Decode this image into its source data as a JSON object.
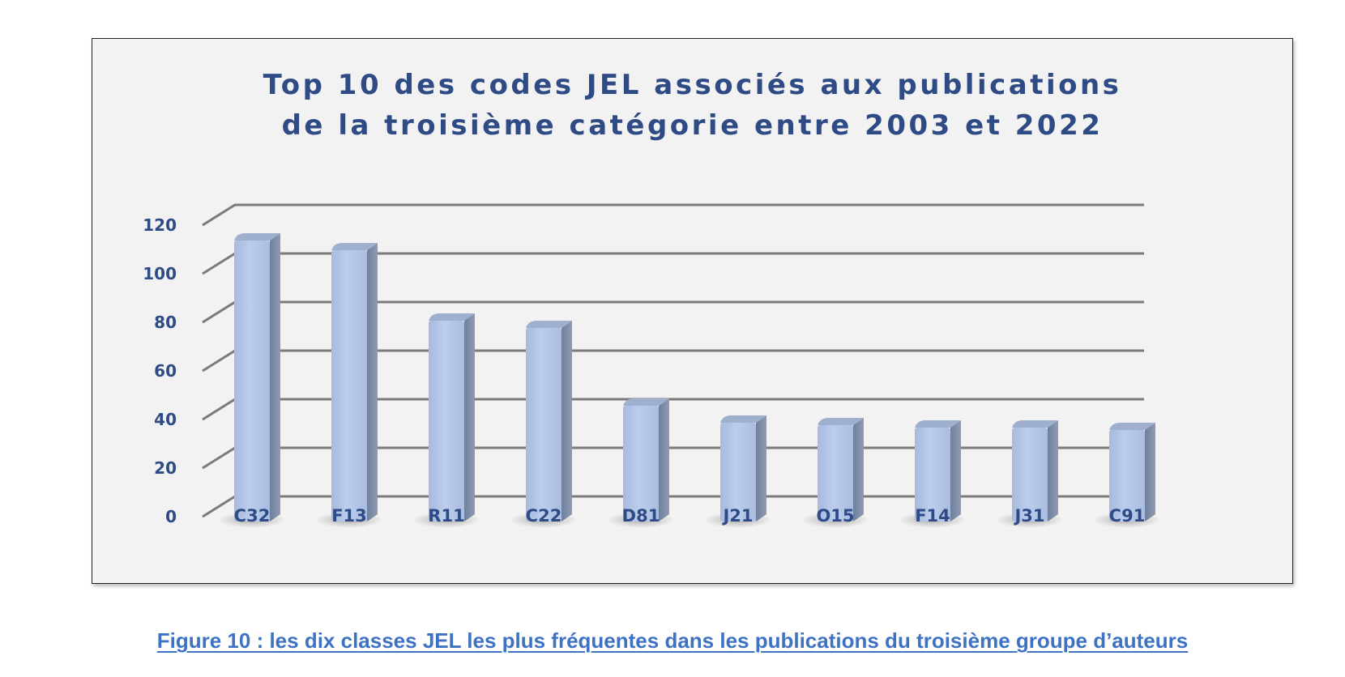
{
  "chart_data": {
    "type": "bar",
    "title_lines": [
      "Top 10 des codes JEL associés aux publications",
      "de la troisième catégorie entre 2003 et 2022"
    ],
    "categories": [
      "C32",
      "F13",
      "R11",
      "C22",
      "D81",
      "J21",
      "O15",
      "F14",
      "J31",
      "C91"
    ],
    "values": [
      115,
      111,
      82,
      79,
      47,
      40,
      39,
      38,
      38,
      37
    ],
    "ylim": [
      0,
      120
    ],
    "yticks": [
      0,
      20,
      40,
      60,
      80,
      100,
      120
    ],
    "grid": true,
    "legend": "none",
    "bar_color": "#b7c8e8",
    "text_color": "#2f4b85"
  },
  "caption": "Figure 10 : les dix classes JEL les plus fréquentes dans les publications du troisième groupe d’auteurs"
}
